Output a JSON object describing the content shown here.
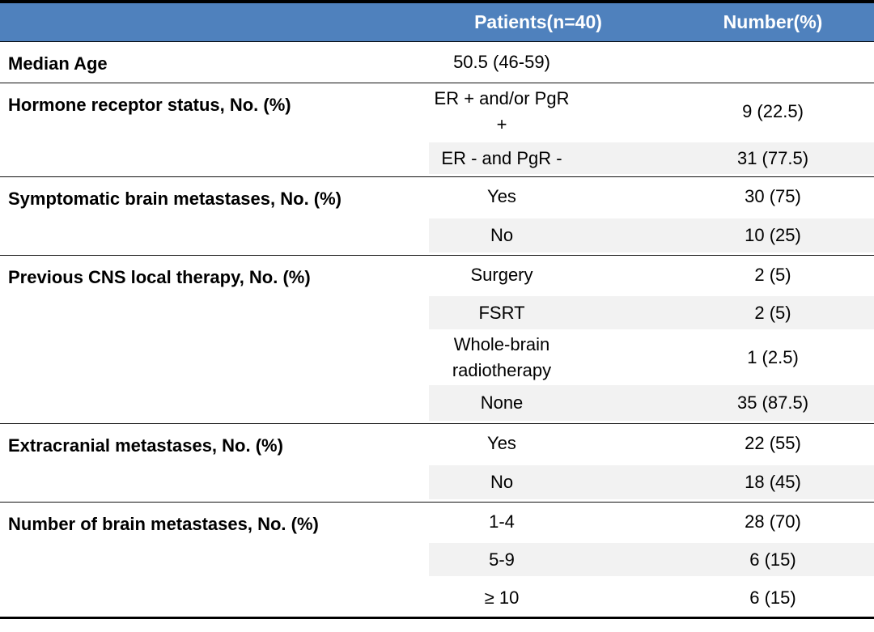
{
  "header": {
    "patients": "Patients(n=40)",
    "number": "Number(%)"
  },
  "groups": [
    {
      "label": "Median Age",
      "rows": [
        {
          "category": "50.5 (46-59)"
        }
      ]
    },
    {
      "label": "Hormone receptor status, No. (%)",
      "rows": [
        {
          "category": "ER + and/or PgR +",
          "value": "9 (22.5)"
        },
        {
          "category": "ER - and PgR -",
          "value": "31 (77.5)"
        }
      ]
    },
    {
      "label": "Symptomatic brain metastases, No. (%)",
      "rows": [
        {
          "category": "Yes",
          "value": "30 (75)"
        },
        {
          "category": "No",
          "value": "10 (25)"
        }
      ]
    },
    {
      "label": "Previous CNS local therapy, No. (%)",
      "rows": [
        {
          "category": "Surgery",
          "value": "2 (5)"
        },
        {
          "category": "FSRT",
          "value": "2 (5)"
        },
        {
          "category": "Whole-brain radiotherapy",
          "value": "1 (2.5)"
        },
        {
          "category": "None",
          "value": "35 (87.5)"
        }
      ]
    },
    {
      "label": "Extracranial metastases, No. (%)",
      "rows": [
        {
          "category": "Yes",
          "value": "22 (55)"
        },
        {
          "category": "No",
          "value": "18 (45)"
        }
      ]
    },
    {
      "label": "Number of brain metastases, No. (%)",
      "rows": [
        {
          "category": "1-4",
          "value": "28 (70)"
        },
        {
          "category": "5-9",
          "value": "6 (15)"
        },
        {
          "category": "≥ 10",
          "value": "6 (15)"
        }
      ]
    }
  ]
}
